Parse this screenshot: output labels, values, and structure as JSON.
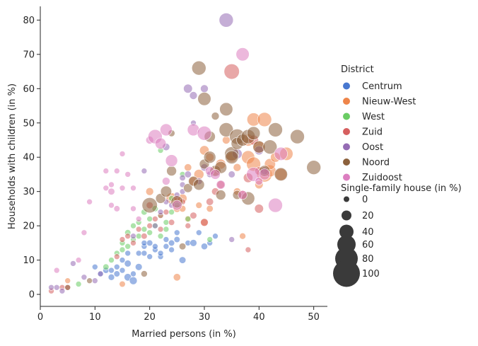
{
  "chart_data": {
    "type": "scatter",
    "xlabel": "Married persons (in %)",
    "ylabel": "Households with children (in %)",
    "xlim": [
      0,
      52.5
    ],
    "ylim": [
      -3.5,
      84
    ],
    "xticks": [
      0,
      10,
      20,
      30,
      40,
      50
    ],
    "yticks": [
      0,
      10,
      20,
      30,
      40,
      50,
      60,
      70,
      80
    ],
    "grid": false,
    "legend_placement": "right",
    "hue_title": "District",
    "size_title": "Single-family house (in %)",
    "size_legend": [
      0,
      20,
      40,
      60,
      80,
      100
    ],
    "series": [
      {
        "name": "Centrum",
        "color": "#4878d0",
        "points": [
          [
            10,
            8,
            0
          ],
          [
            11,
            6,
            0
          ],
          [
            12,
            7,
            2
          ],
          [
            13,
            5,
            3
          ],
          [
            13,
            7,
            0
          ],
          [
            14,
            6,
            2
          ],
          [
            14,
            8,
            0
          ],
          [
            15,
            7,
            0
          ],
          [
            16,
            9,
            5
          ],
          [
            16,
            5,
            8
          ],
          [
            17,
            4,
            10
          ],
          [
            17,
            6,
            0
          ],
          [
            18,
            8,
            6
          ],
          [
            18,
            12,
            0
          ],
          [
            19,
            12,
            0
          ],
          [
            19,
            14,
            0
          ],
          [
            20,
            15,
            2
          ],
          [
            20,
            11,
            0
          ],
          [
            21,
            13,
            0
          ],
          [
            21,
            14,
            0
          ],
          [
            22,
            11,
            0
          ],
          [
            22,
            12,
            0
          ],
          [
            23,
            14,
            0
          ],
          [
            23,
            16,
            0
          ],
          [
            24,
            15,
            2
          ],
          [
            24,
            13,
            0
          ],
          [
            25,
            16,
            2
          ],
          [
            25,
            18,
            0
          ],
          [
            26,
            10,
            5
          ],
          [
            27,
            15,
            0
          ],
          [
            28,
            15,
            6
          ],
          [
            29,
            18,
            0
          ],
          [
            30,
            14,
            4
          ],
          [
            31,
            15,
            0
          ],
          [
            32,
            17,
            0
          ],
          [
            15,
            10,
            0
          ],
          [
            19,
            15,
            0
          ],
          [
            16,
            12,
            0
          ]
        ]
      },
      {
        "name": "Nieuw-West",
        "color": "#ee854a",
        "points": [
          [
            5,
            4,
            0
          ],
          [
            15,
            3,
            2
          ],
          [
            20,
            30,
            10
          ],
          [
            24,
            28,
            25
          ],
          [
            25,
            25,
            8
          ],
          [
            26,
            28,
            15
          ],
          [
            27,
            22,
            5
          ],
          [
            27,
            37,
            8
          ],
          [
            28,
            33,
            15
          ],
          [
            29,
            35,
            20
          ],
          [
            30,
            42,
            18
          ],
          [
            31,
            40,
            12
          ],
          [
            31,
            25,
            5
          ],
          [
            32,
            36,
            15
          ],
          [
            33,
            38,
            20
          ],
          [
            34,
            45,
            10
          ],
          [
            35,
            40,
            22
          ],
          [
            36,
            30,
            8
          ],
          [
            37,
            17,
            3
          ],
          [
            38,
            40,
            35
          ],
          [
            38,
            45,
            30
          ],
          [
            39,
            51,
            35
          ],
          [
            39,
            38,
            40
          ],
          [
            40,
            43,
            30
          ],
          [
            40,
            32,
            12
          ],
          [
            41,
            51,
            40
          ],
          [
            41,
            35,
            45
          ],
          [
            42,
            36,
            30
          ],
          [
            42,
            38,
            25
          ],
          [
            43,
            40,
            20
          ],
          [
            44,
            35,
            30
          ],
          [
            45,
            41,
            35
          ],
          [
            29,
            26,
            3
          ],
          [
            30,
            21,
            8
          ],
          [
            36,
            37,
            10
          ],
          [
            26,
            25,
            5
          ],
          [
            25,
            5,
            8
          ]
        ]
      },
      {
        "name": "West",
        "color": "#6acc64",
        "points": [
          [
            7,
            3,
            0
          ],
          [
            12,
            8,
            2
          ],
          [
            13,
            10,
            0
          ],
          [
            14,
            12,
            0
          ],
          [
            15,
            13,
            0
          ],
          [
            15,
            15,
            0
          ],
          [
            16,
            14,
            0
          ],
          [
            16,
            18,
            2
          ],
          [
            17,
            16,
            0
          ],
          [
            17,
            20,
            0
          ],
          [
            18,
            17,
            0
          ],
          [
            18,
            21,
            0
          ],
          [
            19,
            24,
            2
          ],
          [
            19,
            19,
            0
          ],
          [
            20,
            22,
            0
          ],
          [
            20,
            18,
            0
          ],
          [
            21,
            20,
            0
          ],
          [
            21,
            25,
            2
          ],
          [
            22,
            23,
            0
          ],
          [
            22,
            17,
            0
          ],
          [
            23,
            21,
            0
          ],
          [
            23,
            19,
            0
          ],
          [
            24,
            24,
            0
          ],
          [
            25,
            26,
            2
          ],
          [
            26,
            35,
            0
          ],
          [
            27,
            22,
            0
          ],
          [
            31,
            16,
            0
          ],
          [
            22,
            42,
            0
          ],
          [
            24,
            28,
            0
          ]
        ]
      },
      {
        "name": "Zuid",
        "color": "#d65f5f",
        "points": [
          [
            2,
            1,
            0
          ],
          [
            4,
            2,
            0
          ],
          [
            5,
            2,
            2
          ],
          [
            14,
            11,
            0
          ],
          [
            15,
            16,
            0
          ],
          [
            16,
            17,
            0
          ],
          [
            17,
            15,
            0
          ],
          [
            18,
            19,
            0
          ],
          [
            19,
            17,
            2
          ],
          [
            20,
            20,
            0
          ],
          [
            20,
            26,
            5
          ],
          [
            21,
            22,
            0
          ],
          [
            22,
            23,
            0
          ],
          [
            22,
            19,
            0
          ],
          [
            23,
            24,
            0
          ],
          [
            24,
            21,
            2
          ],
          [
            25,
            28,
            5
          ],
          [
            26,
            27,
            2
          ],
          [
            27,
            20,
            0
          ],
          [
            28,
            23,
            5
          ],
          [
            30,
            21,
            10
          ],
          [
            31,
            27,
            8
          ],
          [
            32,
            30,
            8
          ],
          [
            33,
            32,
            10
          ],
          [
            35,
            65,
            45
          ],
          [
            37,
            29,
            15
          ],
          [
            38,
            13,
            0
          ],
          [
            38,
            34,
            18
          ],
          [
            40,
            25,
            15
          ],
          [
            40,
            36,
            12
          ],
          [
            39,
            45,
            20
          ]
        ]
      },
      {
        "name": "Oost",
        "color": "#956cb4",
        "points": [
          [
            2,
            2,
            0
          ],
          [
            3,
            2,
            0
          ],
          [
            4,
            1,
            0
          ],
          [
            6,
            9,
            0
          ],
          [
            8,
            5,
            0
          ],
          [
            10,
            4,
            0
          ],
          [
            11,
            6,
            0
          ],
          [
            17,
            17,
            0
          ],
          [
            19,
            36,
            0
          ],
          [
            21,
            20,
            0
          ],
          [
            22,
            24,
            0
          ],
          [
            23,
            27,
            0
          ],
          [
            24,
            26,
            0
          ],
          [
            25,
            29,
            0
          ],
          [
            26,
            30,
            0
          ],
          [
            26,
            34,
            2
          ],
          [
            27,
            35,
            5
          ],
          [
            27,
            60,
            15
          ],
          [
            28,
            58,
            10
          ],
          [
            29,
            33,
            5
          ],
          [
            30,
            37,
            8
          ],
          [
            30,
            60,
            10
          ],
          [
            31,
            35,
            3
          ],
          [
            34,
            80,
            40
          ],
          [
            35,
            35,
            5
          ],
          [
            36,
            41,
            20
          ],
          [
            40,
            42,
            15
          ],
          [
            41,
            36,
            10
          ],
          [
            26,
            32,
            0
          ],
          [
            28,
            50,
            0
          ],
          [
            35,
            16,
            0
          ],
          [
            23,
            43,
            8
          ]
        ]
      },
      {
        "name": "Noord",
        "color": "#8c613c",
        "points": [
          [
            5,
            2,
            0
          ],
          [
            9,
            4,
            0
          ],
          [
            19,
            6,
            3
          ],
          [
            20,
            26,
            45
          ],
          [
            22,
            28,
            20
          ],
          [
            23,
            30,
            25
          ],
          [
            24,
            36,
            20
          ],
          [
            25,
            27,
            30
          ],
          [
            26,
            14,
            5
          ],
          [
            27,
            31,
            15
          ],
          [
            28,
            33,
            20
          ],
          [
            29,
            66,
            40
          ],
          [
            29,
            32,
            25
          ],
          [
            30,
            57,
            35
          ],
          [
            30,
            38,
            20
          ],
          [
            31,
            40,
            30
          ],
          [
            31,
            46,
            25
          ],
          [
            32,
            36,
            25
          ],
          [
            33,
            37,
            30
          ],
          [
            33,
            29,
            20
          ],
          [
            34,
            54,
            35
          ],
          [
            34,
            48,
            40
          ],
          [
            35,
            41,
            40
          ],
          [
            35,
            40,
            35
          ],
          [
            36,
            46,
            45
          ],
          [
            36,
            44,
            30
          ],
          [
            37,
            45,
            30
          ],
          [
            38,
            28,
            35
          ],
          [
            38,
            46,
            40
          ],
          [
            39,
            47,
            35
          ],
          [
            40,
            43,
            30
          ],
          [
            41,
            36,
            25
          ],
          [
            42,
            43,
            40
          ],
          [
            43,
            48,
            40
          ],
          [
            44,
            35,
            35
          ],
          [
            47,
            46,
            40
          ],
          [
            50,
            37,
            40
          ],
          [
            32,
            52,
            10
          ],
          [
            36,
            29,
            15
          ],
          [
            24,
            47,
            5
          ]
        ]
      },
      {
        "name": "Zuidoost",
        "color": "#dc7ec0",
        "points": [
          [
            3,
            7,
            0
          ],
          [
            7,
            10,
            0
          ],
          [
            8,
            18,
            0
          ],
          [
            9,
            27,
            0
          ],
          [
            12,
            36,
            0
          ],
          [
            12,
            31,
            0
          ],
          [
            13,
            26,
            0
          ],
          [
            13,
            30,
            5
          ],
          [
            13,
            32,
            0
          ],
          [
            14,
            25,
            2
          ],
          [
            14,
            36,
            0
          ],
          [
            15,
            41,
            0
          ],
          [
            15,
            31,
            0
          ],
          [
            16,
            35,
            0
          ],
          [
            17,
            31,
            0
          ],
          [
            17,
            25,
            0
          ],
          [
            18,
            22,
            0
          ],
          [
            20,
            45,
            10
          ],
          [
            21,
            46,
            40
          ],
          [
            22,
            44,
            25
          ],
          [
            23,
            48,
            30
          ],
          [
            23,
            33,
            10
          ],
          [
            24,
            39,
            30
          ],
          [
            25,
            26,
            20
          ],
          [
            28,
            48,
            30
          ],
          [
            30,
            47,
            40
          ],
          [
            31,
            36,
            15
          ],
          [
            32,
            35,
            20
          ],
          [
            33,
            32,
            15
          ],
          [
            37,
            70,
            35
          ],
          [
            37,
            29,
            15
          ],
          [
            39,
            35,
            40
          ],
          [
            40,
            33,
            10
          ],
          [
            41,
            35,
            25
          ],
          [
            43,
            26,
            40
          ],
          [
            44,
            41,
            35
          ]
        ]
      }
    ]
  }
}
